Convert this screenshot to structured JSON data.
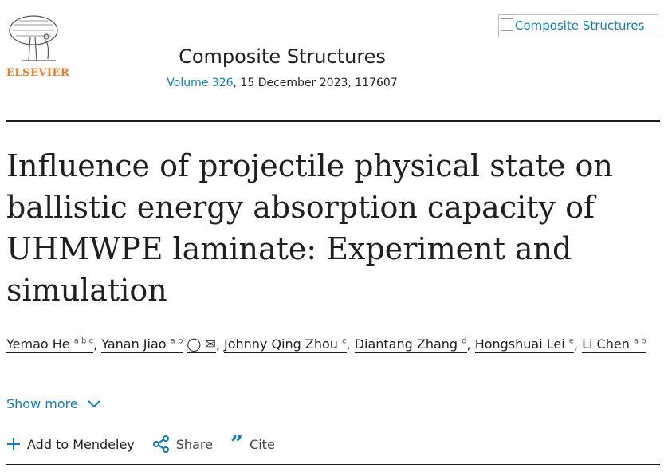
{
  "publisher": {
    "name": "ELSEVIER",
    "logo_color": "#f47a20"
  },
  "journal": {
    "title": "Composite Structures",
    "volume_link": "Volume 326",
    "volume_rest": ", 15 December 2023, 117607",
    "cover_alt": "Composite Structures"
  },
  "article": {
    "title": "Influence of projectile physical state on ballistic energy absorption capacity of UHMWPE laminate: Experiment and simulation"
  },
  "authors": [
    {
      "name": "Yemao He",
      "sup": "a b c"
    },
    {
      "name": "Yanan Jiao",
      "sup": "a b"
    },
    {
      "name": "Johnny Qing Zhou",
      "sup": "c"
    },
    {
      "name": "Diantang Zhang",
      "sup": "d"
    },
    {
      "name": "Hongshuai Lei",
      "sup": "e"
    },
    {
      "name": "Li Chen",
      "sup": "a b"
    }
  ],
  "show_more": "Show more",
  "actions": {
    "mendeley": "Add to Mendeley",
    "share": "Share",
    "cite": "Cite"
  },
  "colors": {
    "link": "#0c7dbb"
  }
}
